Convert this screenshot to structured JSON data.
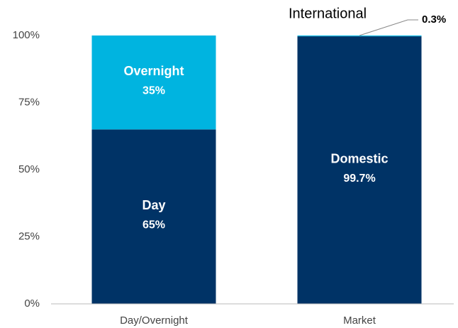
{
  "chart_data": {
    "type": "stacked_bar",
    "categories": [
      "Day/Overnight",
      "Market"
    ],
    "series": [
      {
        "name": "Day",
        "color": "#003366",
        "values": [
          65,
          null
        ],
        "value_labels": [
          "65%",
          null
        ]
      },
      {
        "name": "Overnight",
        "color": "#00b4e0",
        "values": [
          35,
          null
        ],
        "value_labels": [
          "35%",
          null
        ]
      },
      {
        "name": "Domestic",
        "color": "#003366",
        "values": [
          null,
          99.7
        ],
        "value_labels": [
          null,
          "99.7%"
        ]
      },
      {
        "name": "International",
        "color": "#00b4e0",
        "values": [
          null,
          0.3
        ],
        "value_labels": [
          null,
          "0.3%"
        ]
      }
    ],
    "ylim": [
      0,
      100
    ],
    "yticks": [
      {
        "value": 0,
        "label": "0%"
      },
      {
        "value": 25,
        "label": "25%"
      },
      {
        "value": 50,
        "label": "50%"
      },
      {
        "value": 75,
        "label": "75%"
      },
      {
        "value": 100,
        "label": "100%"
      }
    ],
    "grid": false
  }
}
